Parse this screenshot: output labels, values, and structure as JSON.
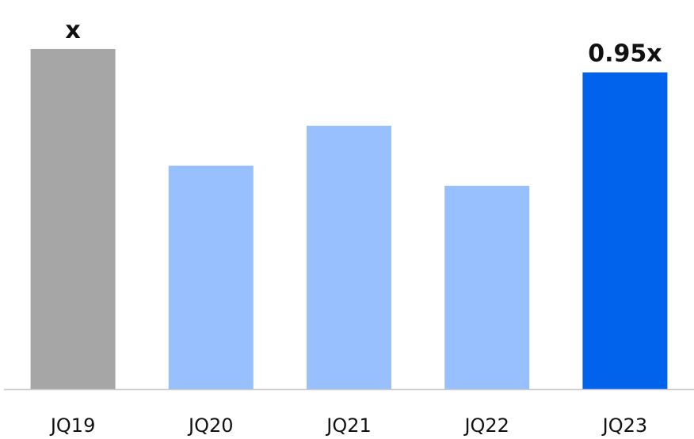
{
  "chart_data": {
    "type": "bar",
    "title": "",
    "xlabel": "",
    "ylabel": "",
    "ylim": [
      0,
      1.0
    ],
    "grid": false,
    "categories": [
      "JQ19",
      "JQ20",
      "JQ21",
      "JQ22",
      "JQ23"
    ],
    "values": [
      1.02,
      0.67,
      0.79,
      0.61,
      0.95
    ],
    "data_labels": [
      "x",
      "",
      "",
      "",
      "0.95x"
    ],
    "colors": [
      "#a6a6a6",
      "#98bffe",
      "#98bffe",
      "#98bffe",
      "#0163eb"
    ],
    "axis_color": "#c9c9c9"
  }
}
